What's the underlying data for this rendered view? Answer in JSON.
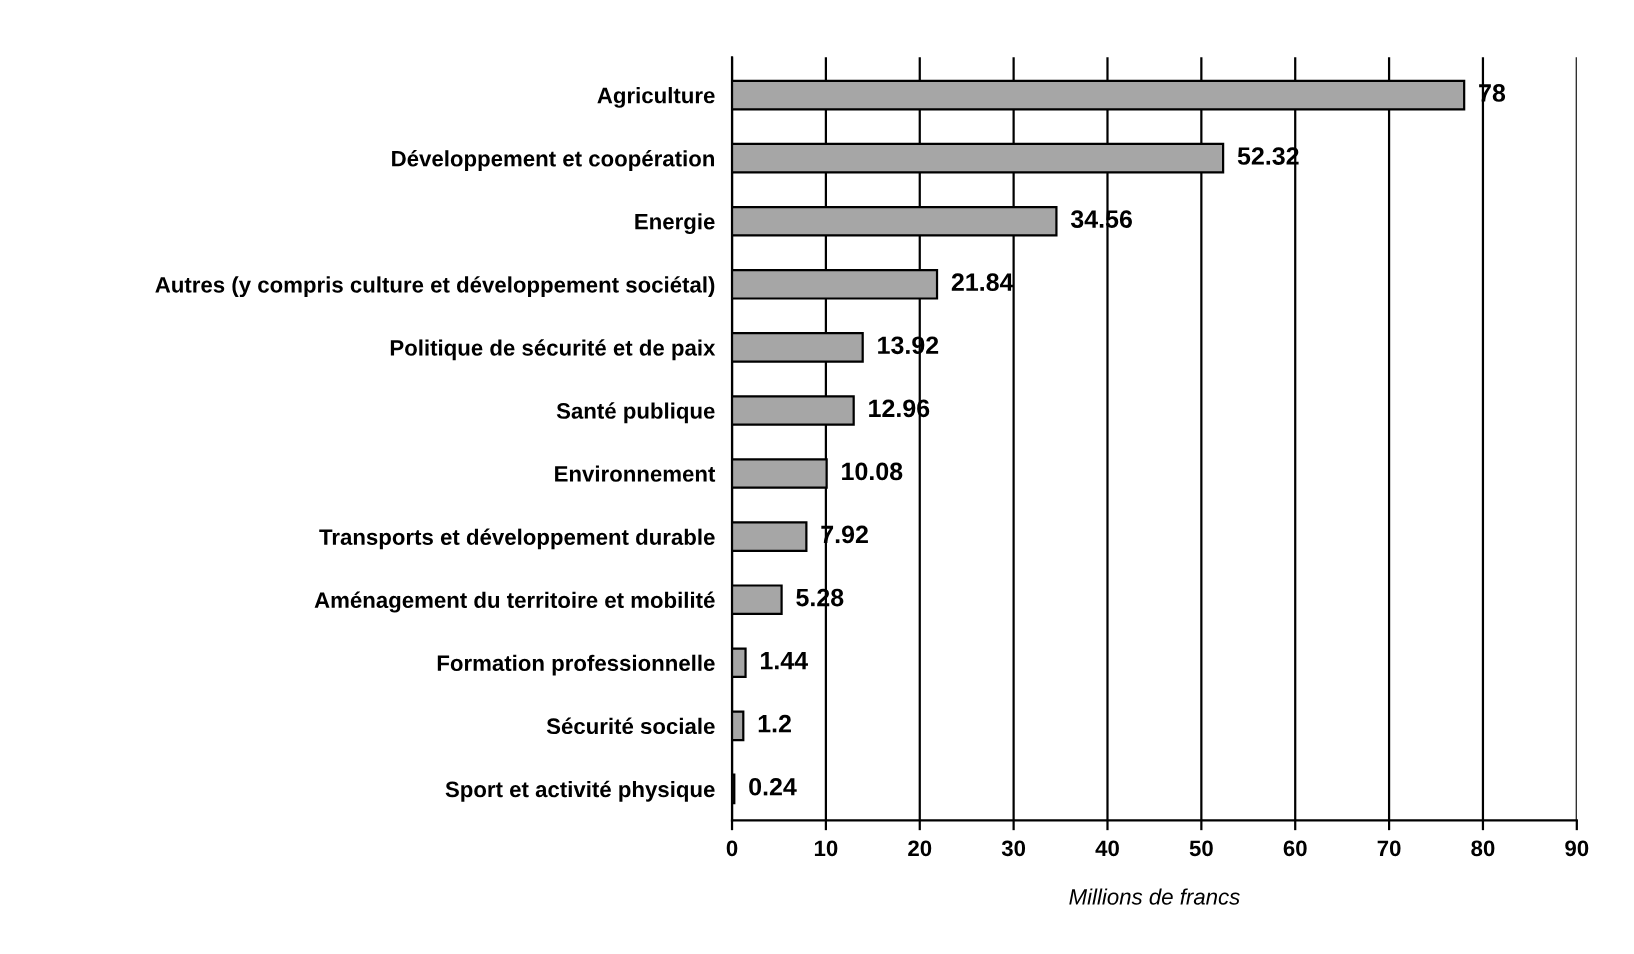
{
  "chart_data": {
    "type": "bar",
    "orientation": "horizontal",
    "categories": [
      "Agriculture",
      "Développement et coopération",
      "Energie",
      "Autres (y compris culture et développement sociétal)",
      "Politique de sécurité et de paix",
      "Santé publique",
      "Environnement",
      "Transports et développement durable",
      "Aménagement du territoire et mobilité",
      "Formation professionnelle",
      "Sécurité sociale",
      "Sport et activité physique"
    ],
    "values": [
      78,
      52.32,
      34.56,
      21.84,
      13.92,
      12.96,
      10.08,
      7.92,
      5.28,
      1.44,
      1.2,
      0.24
    ],
    "color": "#a6a6a6",
    "xlim": [
      0,
      90
    ],
    "xticks": [
      0,
      10,
      20,
      30,
      40,
      50,
      60,
      70,
      80,
      90
    ],
    "xlabel": "Millions de francs",
    "grid": "x",
    "data_labels": true
  }
}
